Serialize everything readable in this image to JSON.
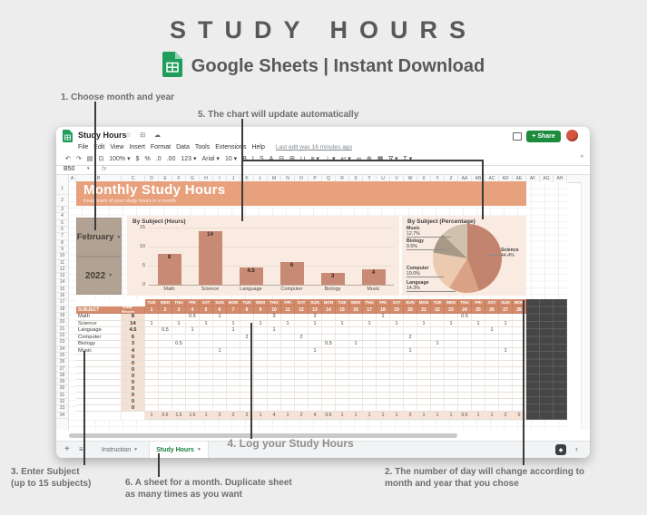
{
  "hero": {
    "title": "STUDY HOURS",
    "subtitle": "Google Sheets | Instant Download"
  },
  "annotations": {
    "n1": "1. Choose month and year",
    "n5": "5. The chart will update automatically",
    "n4": "4. Log your Study Hours",
    "n3": [
      "3. Enter Subject",
      "(up to 15 subjects)"
    ],
    "n6": [
      "6. A sheet for a month. Duplicate sheet",
      "as many times as you want"
    ],
    "n2": [
      "2. The number of day will change according to",
      "month and year that you chose"
    ]
  },
  "window": {
    "doc_title": "Study Hours",
    "title_icons": "☆ ⊟ ☁",
    "menus": [
      "File",
      "Edit",
      "View",
      "Insert",
      "Format",
      "Data",
      "Tools",
      "Extensions",
      "Help"
    ],
    "last_edit": "Last edit was 16 minutes ago",
    "share_label": "Share",
    "name_box": "B50",
    "fx_label": "fx",
    "toolbar_collapse": "^",
    "toolbar_items": [
      {
        "n": "undo-icon",
        "g": "↶"
      },
      {
        "n": "redo-icon",
        "g": "↷"
      },
      {
        "n": "print-icon",
        "g": "▤"
      },
      {
        "n": "paint-format-icon",
        "g": "⊡"
      },
      {
        "n": "zoom-select",
        "g": "100% ▾"
      },
      {
        "n": "currency-icon",
        "g": "$"
      },
      {
        "n": "percent-icon",
        "g": "%"
      },
      {
        "n": "decrease-decimals-icon",
        "g": ".0"
      },
      {
        "n": "increase-decimals-icon",
        "g": ".00"
      },
      {
        "n": "number-format-select",
        "g": "123 ▾"
      },
      {
        "n": "font-select",
        "g": "Arial ▾"
      },
      {
        "n": "font-size-select",
        "g": "10 ▾"
      },
      {
        "n": "bold-icon",
        "g": "B"
      },
      {
        "n": "italic-icon",
        "g": "I"
      },
      {
        "n": "strikethrough-icon",
        "g": "S"
      },
      {
        "n": "text-color-icon",
        "g": "A"
      },
      {
        "n": "fill-color-icon",
        "g": "⊟"
      },
      {
        "n": "borders-icon",
        "g": "⊞"
      },
      {
        "n": "merge-cells-icon",
        "g": "⊔"
      },
      {
        "n": "h-align-icon",
        "g": "≡ ▾"
      },
      {
        "n": "v-align-icon",
        "g": "⊥ ▾"
      },
      {
        "n": "text-wrap-icon",
        "g": "↩ ▾"
      },
      {
        "n": "link-icon",
        "g": "∞"
      },
      {
        "n": "insert-comment-icon",
        "g": "⊕"
      },
      {
        "n": "insert-chart-icon",
        "g": "▦"
      },
      {
        "n": "filter-icon",
        "g": "∇ ▾"
      },
      {
        "n": "functions-icon",
        "g": "Σ ▾"
      }
    ],
    "column_letters": [
      "A",
      "B",
      "C",
      "D",
      "E",
      "F",
      "G",
      "H",
      "I",
      "J",
      "K",
      "L",
      "M",
      "N",
      "O",
      "P",
      "Q",
      "R",
      "S",
      "T",
      "U",
      "V",
      "W",
      "X",
      "Y",
      "Z",
      "AA",
      "AB",
      "AC",
      "AD",
      "AE",
      "AF",
      "AG",
      "AH"
    ],
    "row_numbers": [
      "1",
      "2",
      "3",
      "4",
      "5",
      "6",
      "7",
      "8",
      "9",
      "10",
      "11",
      "12",
      "13",
      "14",
      "15",
      "16",
      "17",
      "18",
      "19",
      "20",
      "21",
      "22",
      "23",
      "24",
      "25",
      "26",
      "27",
      "28",
      "29",
      "30",
      "31",
      "32",
      "33",
      "34"
    ],
    "tabs": {
      "add": "+",
      "all_sheets": "≡",
      "instruction": "Instruction",
      "active": "Study Hours"
    }
  },
  "sheet": {
    "banner_title": "Monthly Study Hours",
    "banner_subtitle": "Keep track of your study hours in a month",
    "month": "February",
    "year": "2022",
    "table": {
      "subject_header": "SUBJECT",
      "total_header": "Total Hours",
      "day_names": [
        "TUE",
        "WED",
        "THU",
        "FRI",
        "SAT",
        "SUN",
        "MON",
        "TUE",
        "WED",
        "THU",
        "FRI",
        "SAT",
        "SUN",
        "MON",
        "TUE",
        "WED",
        "THU",
        "FRI",
        "SAT",
        "SUN",
        "MON",
        "TUE",
        "WED",
        "THU",
        "FRI",
        "SAT",
        "SUN",
        "MON"
      ],
      "day_numbers": [
        "1",
        "2",
        "3",
        "4",
        "5",
        "6",
        "7",
        "8",
        "9",
        "10",
        "11",
        "12",
        "13",
        "14",
        "15",
        "16",
        "17",
        "18",
        "19",
        "20",
        "21",
        "22",
        "23",
        "24",
        "25",
        "26",
        "27",
        "28"
      ],
      "subject_rows": [
        {
          "subject": "Math",
          "total": "8",
          "hours": {
            "4": "0.5",
            "6": "1",
            "10": "3",
            "13": "2",
            "18": "1",
            "24": "0.5"
          }
        },
        {
          "subject": "Science",
          "total": "14",
          "hours": {
            "1": "1",
            "3": "1",
            "5": "1",
            "7": "1",
            "9": "1",
            "11": "1",
            "13": "1",
            "15": "1",
            "17": "1",
            "19": "1",
            "21": "1",
            "23": "1",
            "25": "1",
            "27": "1"
          }
        },
        {
          "subject": "Language",
          "total": "4.5",
          "hours": {
            "2": "0.5",
            "4": "1",
            "7": "1",
            "10": "1",
            "26": "1"
          }
        },
        {
          "subject": "Computer",
          "total": "6",
          "hours": {
            "8": "2",
            "12": "2",
            "20": "2"
          }
        },
        {
          "subject": "Biology",
          "total": "3",
          "hours": {
            "3": "0.5",
            "14": "0.5",
            "16": "1",
            "22": "1"
          }
        },
        {
          "subject": "Music",
          "total": "4",
          "hours": {
            "6": "1",
            "13": "1",
            "20": "1",
            "27": "1"
          }
        }
      ],
      "empty_row_count": 9,
      "empty_row_total": "0",
      "daily_totals": [
        "1",
        "0.5",
        "1.5",
        "1.5",
        "1",
        "2",
        "2",
        "2",
        "1",
        "4",
        "1",
        "2",
        "4",
        "0.5",
        "1",
        "1",
        "1",
        "1",
        "1",
        "3",
        "1",
        "1",
        "1",
        "0.5",
        "1",
        "1",
        "2",
        "0"
      ]
    }
  },
  "chart_data": [
    {
      "type": "bar",
      "title": "By Subject (Hours)",
      "categories": [
        "Math",
        "Science",
        "Language",
        "Computer",
        "Biology",
        "Music"
      ],
      "values": [
        8,
        14,
        4.5,
        6,
        3,
        4
      ],
      "value_labels": [
        "8",
        "14",
        "4.5",
        "6",
        "3",
        "4"
      ],
      "xlabel": "",
      "ylabel": "",
      "ylim": [
        0,
        15
      ],
      "yticks": [
        0,
        5,
        10,
        15
      ],
      "ytick_labels_top_down": [
        "15",
        "10",
        "5",
        "0"
      ],
      "grid": true,
      "legend": "none",
      "bar_color": "#c88a75"
    },
    {
      "type": "pie",
      "title": "By Subject (Percentage)",
      "labels": [
        "Science",
        "Language",
        "Computer",
        "Biology",
        "Music"
      ],
      "values_percent": [
        44.4,
        14.3,
        19.0,
        9.5,
        12.7
      ],
      "label_display": [
        "44.4%",
        "14.3%",
        "19.0%",
        "9.5%",
        "12.7%"
      ],
      "slice_colors": [
        "#c2846f",
        "#d9a287",
        "#eccab0",
        "#a79888",
        "#cfc1ac"
      ],
      "legend_position": "callout-labels"
    }
  ],
  "colors": {
    "banner": "#e8a17d",
    "selector": "#b1a294",
    "panel_bg": "#f9ebe1",
    "bar": "#c88a75",
    "table_header": "#d48c6c",
    "total_column": "#f4e1d3",
    "totals_row": "#f6e3d5",
    "dark_cells": "#464646",
    "share_green": "#1c8c3c",
    "active_tab_green": "#188038"
  }
}
